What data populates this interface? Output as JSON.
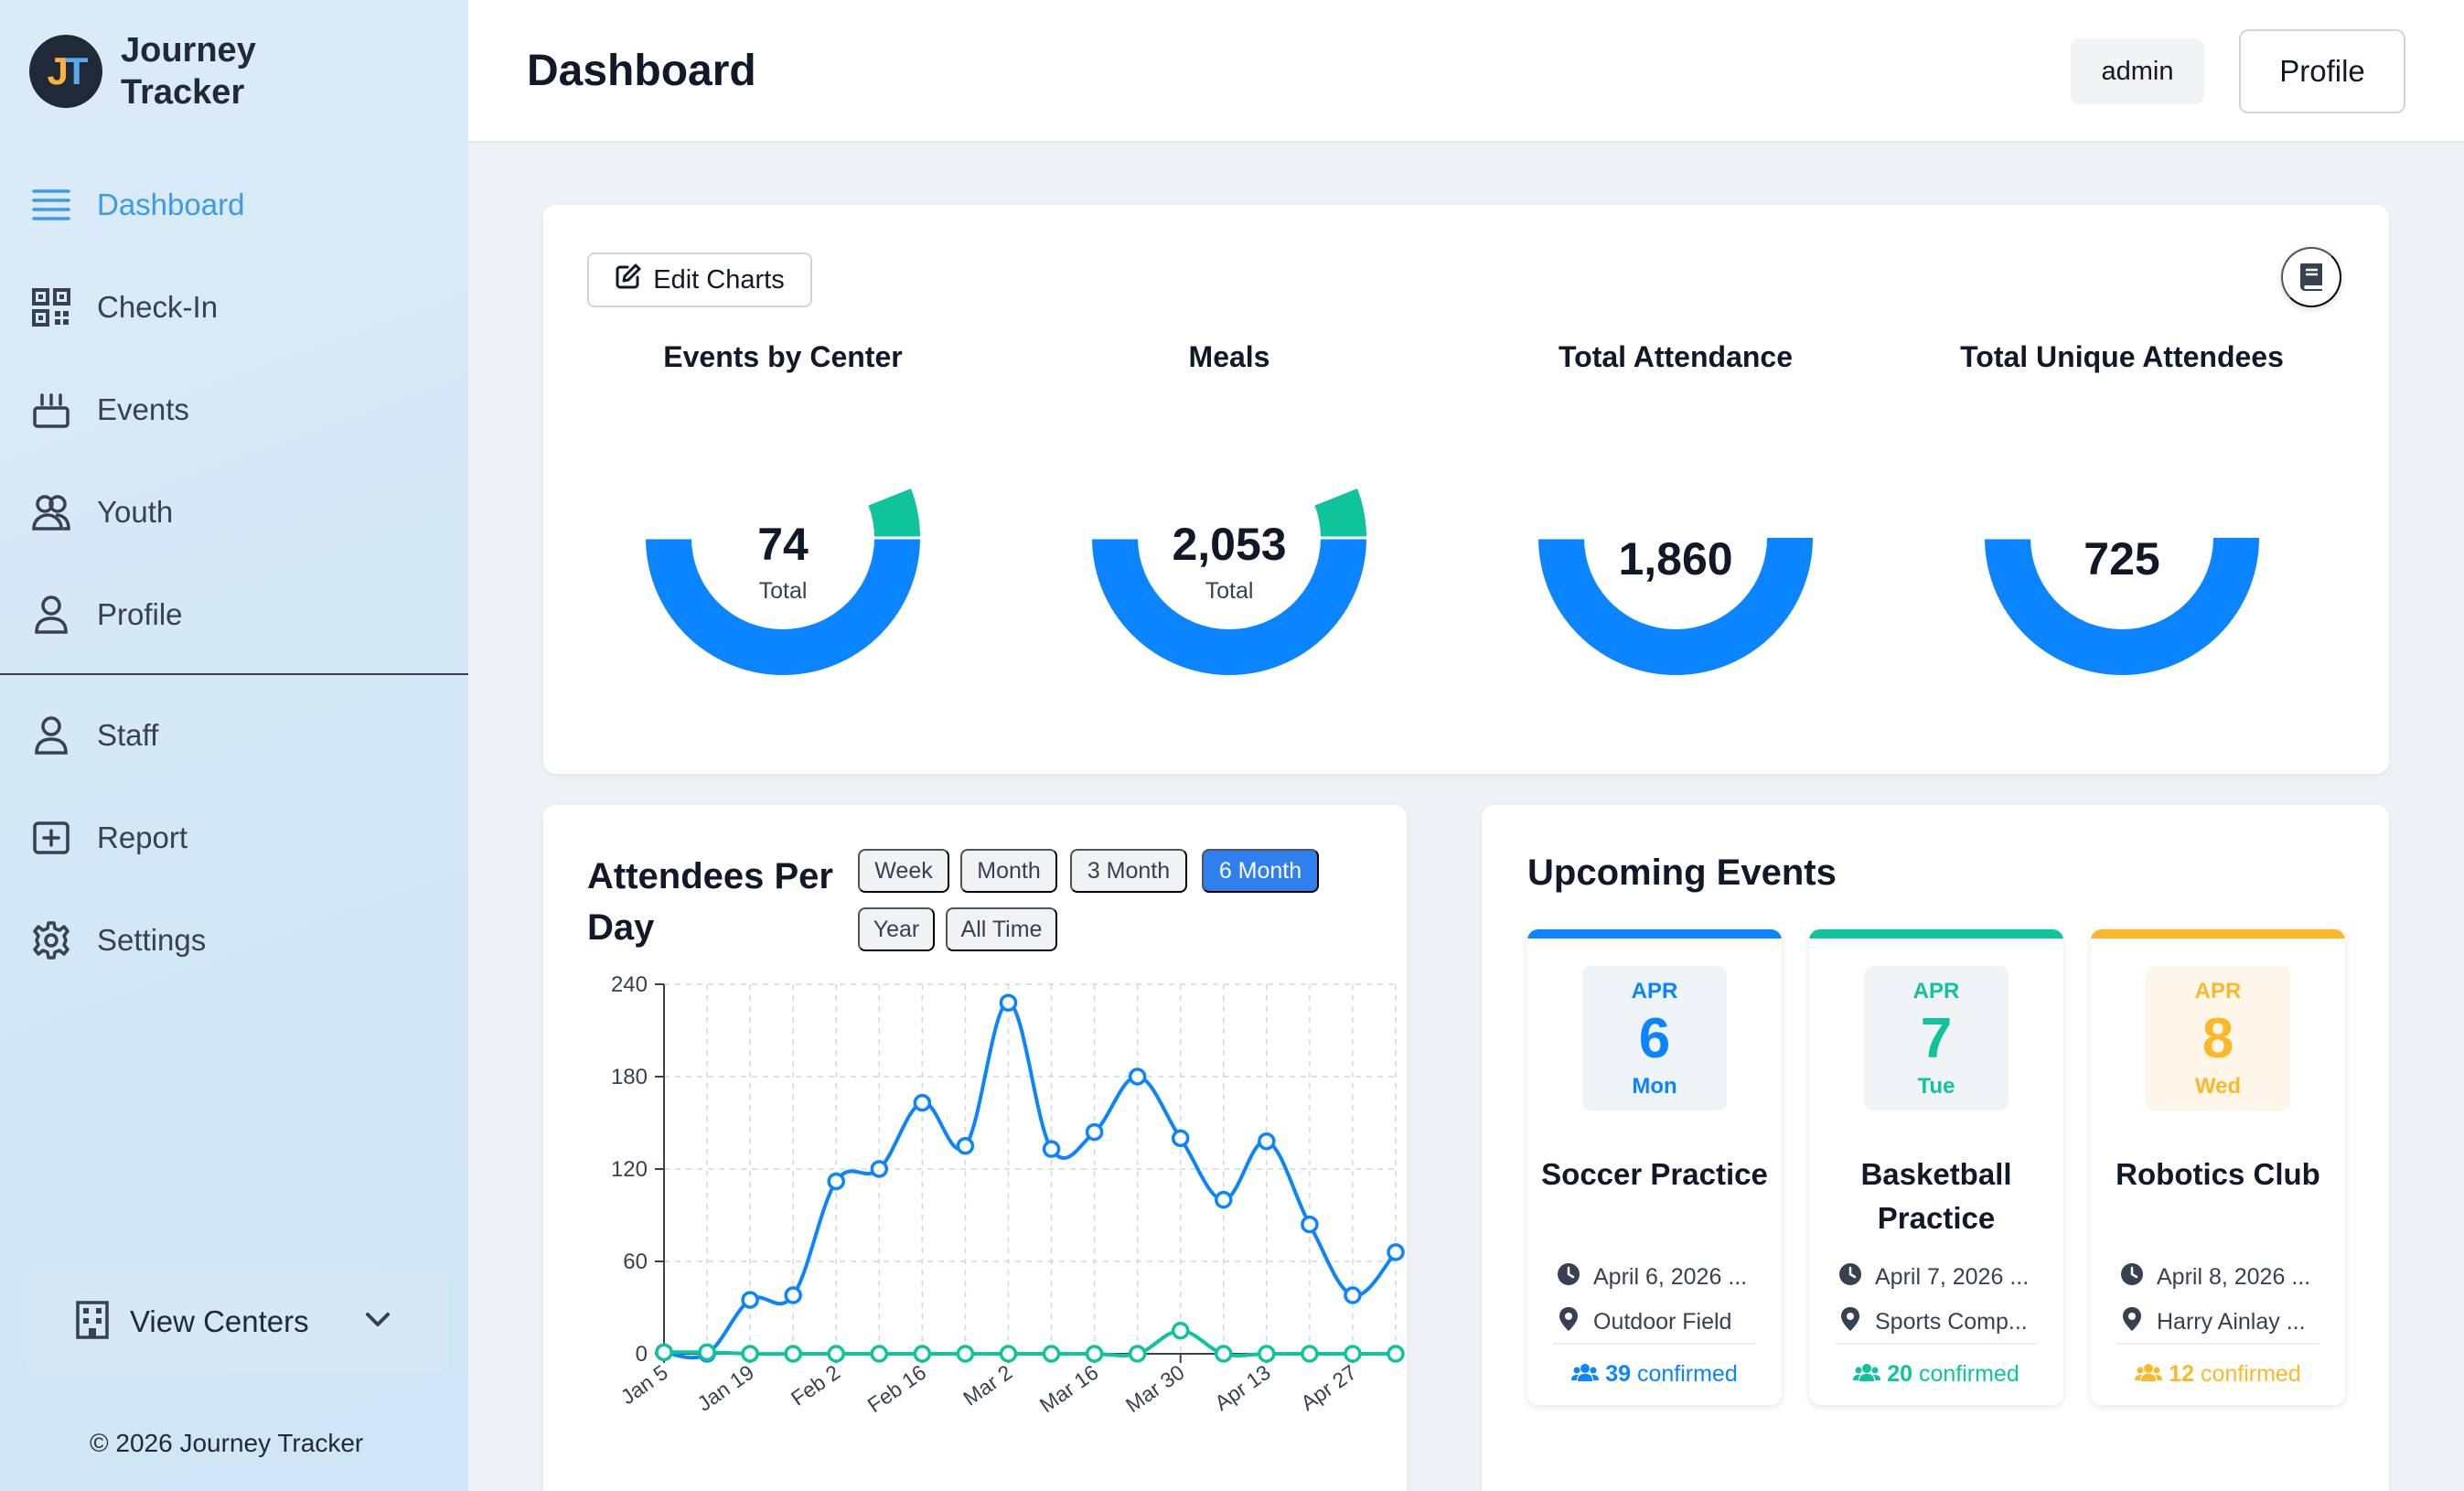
{
  "brand": {
    "logo_text_j": "J",
    "logo_text_t": "T",
    "name": "Journey Tracker"
  },
  "sidebar": {
    "items": [
      {
        "label": "Dashboard",
        "icon": "menu-icon",
        "active": true
      },
      {
        "label": "Check-In",
        "icon": "qr-code-icon"
      },
      {
        "label": "Events",
        "icon": "cake-icon"
      },
      {
        "label": "Youth",
        "icon": "users-icon"
      },
      {
        "label": "Profile",
        "icon": "user-icon"
      },
      {
        "label": "Staff",
        "icon": "user-icon"
      },
      {
        "label": "Report",
        "icon": "plus-square-icon"
      },
      {
        "label": "Settings",
        "icon": "gear-icon"
      }
    ],
    "view_centers": "View Centers",
    "copyright": "© 2026 Journey Tracker"
  },
  "header": {
    "title": "Dashboard",
    "admin": "admin",
    "profile": "Profile"
  },
  "charts_card": {
    "edit_label": "Edit Charts"
  },
  "colors": {
    "blue": "#0a84ff",
    "green": "#0fc39a",
    "yellow": "#fbb829",
    "accent": "#2f80ed"
  },
  "chart_data": [
    {
      "type": "pie",
      "title": "Events by Center",
      "center_value": "74",
      "center_label": "Total",
      "values": [
        0.5,
        0.06,
        0.44
      ]
    },
    {
      "type": "pie",
      "title": "Meals",
      "center_value": "2,053",
      "center_label": "Total",
      "values": [
        0.5,
        0.06,
        0.44
      ]
    },
    {
      "type": "pie",
      "title": "Total Attendance",
      "center_value": "1,860",
      "center_label": "",
      "values": [
        1.0
      ]
    },
    {
      "type": "pie",
      "title": "Total Unique Attendees",
      "center_value": "725",
      "center_label": "",
      "values": [
        1.0
      ]
    },
    {
      "type": "line",
      "title": "Attendees Per Day",
      "categories": [
        "Jan 5",
        "Jan 12",
        "Jan 19",
        "Jan 26",
        "Feb 2",
        "Feb 9",
        "Feb 16",
        "Feb 23",
        "Mar 2",
        "Mar 9",
        "Mar 16",
        "Mar 23",
        "Mar 30",
        "Apr 6",
        "Apr 13",
        "Apr 20",
        "Apr 27",
        "May 4"
      ],
      "tick_labels": [
        "Jan 5",
        "Jan 19",
        "Feb 2",
        "Feb 16",
        "Mar 2",
        "Mar 16",
        "Mar 30",
        "Apr 13",
        "Apr 27"
      ],
      "series": [
        {
          "values": [
            1,
            0,
            35,
            38,
            112,
            120,
            163,
            135,
            228,
            133,
            144,
            180,
            140,
            100,
            138,
            84,
            38,
            66
          ]
        },
        {
          "values": [
            1,
            1,
            0,
            0,
            0,
            0,
            0,
            0,
            0,
            0,
            0,
            0,
            15,
            0,
            0,
            0,
            0,
            0
          ]
        }
      ],
      "ylim": [
        0,
        240
      ],
      "yticks": [
        "0",
        "60",
        "120",
        "180",
        "240"
      ],
      "grid": true
    }
  ],
  "line_card": {
    "title": "Attendees Per Day",
    "ranges": [
      "Week",
      "Month",
      "3 Month",
      "6 Month",
      "Year",
      "All Time"
    ],
    "selected": "6 Month"
  },
  "events": {
    "title": "Upcoming Events",
    "items": [
      {
        "month": "APR",
        "day": "6",
        "dow": "Mon",
        "name": "Soccer Practice",
        "date": "April 6, 2026 ...",
        "location": "Outdoor Field",
        "confirmed_count": "39",
        "confirmed_label": "confirmed",
        "color": "#0a84ff",
        "tint": "#eef3f8"
      },
      {
        "month": "APR",
        "day": "7",
        "dow": "Tue",
        "name": "Basketball Practice",
        "date": "April 7, 2026 ...",
        "location": "Sports Comp...",
        "confirmed_count": "20",
        "confirmed_label": "confirmed",
        "color": "#0fc39a",
        "tint": "#f0f4f6"
      },
      {
        "month": "APR",
        "day": "8",
        "dow": "Wed",
        "name": "Robotics Club",
        "date": "April 8, 2026 ...",
        "location": "Harry Ainlay ...",
        "confirmed_count": "12",
        "confirmed_label": "confirmed",
        "color": "#fbb829",
        "tint": "#fff6ea"
      }
    ]
  }
}
